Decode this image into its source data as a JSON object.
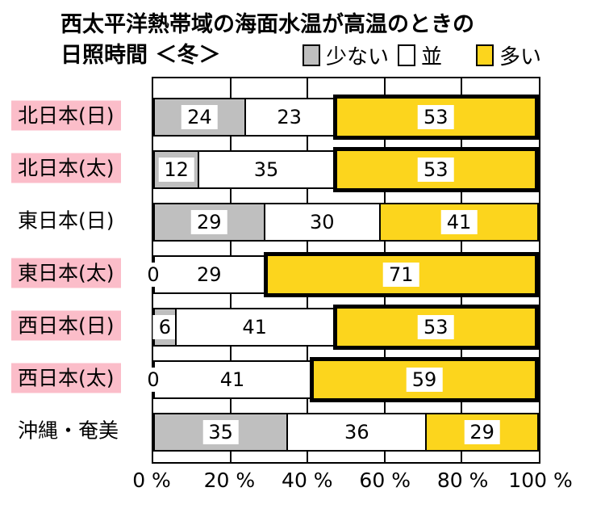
{
  "title_line1": "西太平洋熱帯域の海面水温が高温のときの",
  "title_line2": "日照時間 ＜冬＞",
  "legend": [
    {
      "label": "少ない",
      "color": "#BFBFBF"
    },
    {
      "label": "並",
      "color": "#FFFFFF"
    },
    {
      "label": "多い",
      "color": "#FCD51D"
    }
  ],
  "colors": {
    "few": "#BFBFBF",
    "normal": "#FFFFFF",
    "many": "#FCD51D",
    "highlight": "#FBBDC9",
    "border": "#000000"
  },
  "axis": {
    "ticks": [
      "0 %",
      "20 %",
      "40 %",
      "60 %",
      "80 %",
      "100 %"
    ]
  },
  "rows": [
    {
      "label": "北日本(日)",
      "highlight": true,
      "few": 24,
      "normal": 23,
      "many": 53,
      "emphasis": true,
      "zero_label": false
    },
    {
      "label": "北日本(太)",
      "highlight": true,
      "few": 12,
      "normal": 35,
      "many": 53,
      "emphasis": true,
      "zero_label": false
    },
    {
      "label": "東日本(日)",
      "highlight": false,
      "few": 29,
      "normal": 30,
      "many": 41,
      "emphasis": false,
      "zero_label": false
    },
    {
      "label": "東日本(太)",
      "highlight": true,
      "few": 0,
      "normal": 29,
      "many": 71,
      "emphasis": true,
      "zero_label": true
    },
    {
      "label": "西日本(日)",
      "highlight": true,
      "few": 6,
      "normal": 41,
      "many": 53,
      "emphasis": true,
      "zero_label": false
    },
    {
      "label": "西日本(太)",
      "highlight": true,
      "few": 0,
      "normal": 41,
      "many": 59,
      "emphasis": true,
      "zero_label": true
    },
    {
      "label": "沖縄・奄美",
      "highlight": false,
      "few": 35,
      "normal": 36,
      "many": 29,
      "emphasis": false,
      "zero_label": false
    }
  ],
  "chart_data": {
    "type": "bar",
    "orientation": "horizontal",
    "stacked": true,
    "title": "西太平洋熱帯域の海面水温が高温のときの日照時間 ＜冬＞",
    "categories": [
      "北日本(日)",
      "北日本(太)",
      "東日本(日)",
      "東日本(太)",
      "西日本(日)",
      "西日本(太)",
      "沖縄・奄美"
    ],
    "series": [
      {
        "name": "少ない",
        "color": "#BFBFBF",
        "values": [
          24,
          12,
          29,
          0,
          6,
          0,
          35
        ]
      },
      {
        "name": "並",
        "color": "#FFFFFF",
        "values": [
          23,
          35,
          30,
          29,
          41,
          41,
          36
        ]
      },
      {
        "name": "多い",
        "color": "#FCD51D",
        "values": [
          53,
          53,
          41,
          71,
          53,
          59,
          29
        ]
      }
    ],
    "xlim": [
      0,
      100
    ],
    "x_tick_labels": [
      "0 %",
      "20 %",
      "40 %",
      "60 %",
      "80 %",
      "100 %"
    ],
    "grid": "vertical lines every 20%",
    "legend_position": "top",
    "highlighted_categories": [
      "北日本(日)",
      "北日本(太)",
      "東日本(太)",
      "西日本(日)",
      "西日本(太)"
    ],
    "emphasized_many_segments": [
      "北日本(日)",
      "北日本(太)",
      "東日本(太)",
      "西日本(日)",
      "西日本(太)"
    ]
  }
}
